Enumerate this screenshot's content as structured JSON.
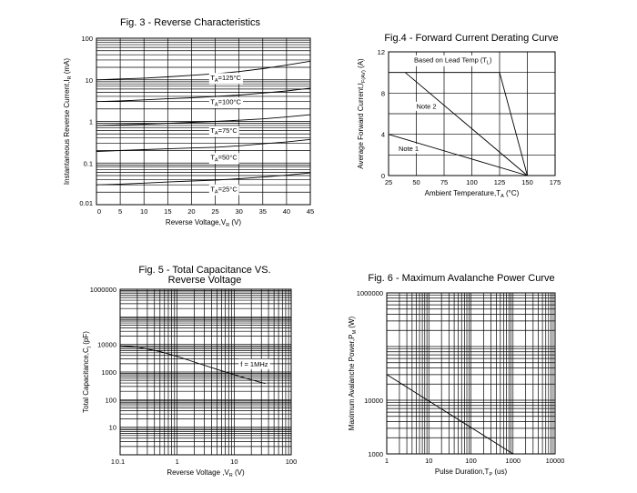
{
  "chart_data": [
    {
      "id": "fig3",
      "type": "line",
      "title": "Fig. 3 - Reverse Characteristics",
      "xlabel": "Reverse Voltage,V",
      "xlabel_sub": "R",
      "xlabel_unit": " (V)",
      "ylabel": "Instantaneous Reverse Current,I",
      "ylabel_sub": "R",
      "ylabel_unit": " (mA)",
      "xscale": "linear",
      "yscale": "log",
      "xlim": [
        0,
        45
      ],
      "ylim": [
        0.01,
        100
      ],
      "x_ticks": [
        "0",
        "5",
        "10",
        "15",
        "20",
        "25",
        "30",
        "35",
        "40",
        "45"
      ],
      "y_ticks": [
        "100",
        "10",
        "1",
        "0.1",
        "0.01"
      ],
      "grid": true,
      "series": [
        {
          "name": "T = 125°C",
          "label_main": "T",
          "label_sub": "A",
          "label_rest": "=125°C",
          "label_at": [
            24,
            10
          ],
          "x": [
            0,
            5,
            10,
            15,
            20,
            25,
            30,
            35,
            40,
            45
          ],
          "y": [
            10,
            10.5,
            11,
            11.8,
            12.8,
            14,
            15.8,
            18.5,
            22.5,
            28
          ]
        },
        {
          "name": "T = 100°C",
          "label_main": "T",
          "label_sub": "A",
          "label_rest": "=100°C",
          "label_at": [
            24,
            2.6
          ],
          "x": [
            0,
            5,
            10,
            15,
            20,
            25,
            30,
            35,
            40,
            45
          ],
          "y": [
            3.0,
            3.1,
            3.3,
            3.5,
            3.7,
            4.0,
            4.3,
            4.8,
            5.4,
            6.3
          ]
        },
        {
          "name": "T = 75°C",
          "label_main": "T",
          "label_sub": "A",
          "label_rest": "=75°C",
          "label_at": [
            24,
            0.53
          ],
          "x": [
            0,
            5,
            10,
            15,
            20,
            25,
            30,
            35,
            40,
            45
          ],
          "y": [
            0.8,
            0.83,
            0.86,
            0.9,
            0.95,
            1.0,
            1.07,
            1.15,
            1.28,
            1.45
          ]
        },
        {
          "name": "T = 50°C",
          "label_main": "T",
          "label_sub": "A",
          "label_rest": "=50°C",
          "label_at": [
            24,
            0.12
          ],
          "x": [
            0,
            5,
            10,
            15,
            20,
            25,
            30,
            35,
            40,
            45
          ],
          "y": [
            0.19,
            0.2,
            0.21,
            0.22,
            0.23,
            0.24,
            0.26,
            0.29,
            0.32,
            0.37
          ]
        },
        {
          "name": "T = 25°C",
          "label_main": "T",
          "label_sub": "A",
          "label_rest": "=25°C",
          "label_at": [
            24,
            0.021
          ],
          "x": [
            0,
            5,
            10,
            15,
            20,
            25,
            30,
            35,
            40,
            45
          ],
          "y": [
            0.03,
            0.031,
            0.033,
            0.035,
            0.037,
            0.039,
            0.042,
            0.046,
            0.051,
            0.058
          ]
        }
      ]
    },
    {
      "id": "fig4",
      "type": "line",
      "title": "Fig.4 - Forward Current Derating Curve",
      "xlabel": "Ambient Temperature,T",
      "xlabel_sub": "A",
      "xlabel_unit": " (°C)",
      "ylabel": "Average Forward Current,I",
      "ylabel_sub": "F(AV)",
      "ylabel_unit": " (A)",
      "xscale": "linear",
      "yscale": "linear",
      "xlim": [
        25,
        175
      ],
      "ylim": [
        0,
        12
      ],
      "x_ticks": [
        "25",
        "50",
        "75",
        "100",
        "125",
        "150",
        "175"
      ],
      "y_ticks": [
        "0",
        "4",
        "8",
        "12"
      ],
      "grid": true,
      "series": [
        {
          "name": "Based on Lead Temp (TL)",
          "label_main": "Based on Lead Temp (T",
          "label_sub": "L",
          "label_rest": ")",
          "label_at": [
            48,
            11
          ],
          "x": [
            25,
            125,
            150
          ],
          "y": [
            10,
            10,
            0
          ]
        },
        {
          "name": "Note 2",
          "label_main": "Note 2",
          "label_at": [
            50,
            6.5
          ],
          "x": [
            40,
            150
          ],
          "y": [
            10,
            0
          ]
        },
        {
          "name": "Note 1",
          "label_main": "Note 1",
          "label_at": [
            34,
            2.4
          ],
          "x": [
            25,
            150
          ],
          "y": [
            4,
            0
          ]
        }
      ]
    },
    {
      "id": "fig5",
      "type": "line",
      "title": "Fig. 5 - Total Capacitance VS.",
      "title2": "Reverse Voltage",
      "xlabel": "Reverse Voltage ,V",
      "xlabel_sub": "R",
      "xlabel_unit": " (V)",
      "ylabel": "Total Capacitance,C",
      "ylabel_sub": "j",
      "ylabel_unit": " (pF)",
      "xscale": "log",
      "yscale": "log",
      "xlim": [
        0.1,
        100
      ],
      "ylim": [
        1,
        1000000
      ],
      "x_ticks": [
        "0.1",
        "1",
        "10",
        "100"
      ],
      "y_ticks": [
        "1000000",
        "10000",
        "1000",
        "100",
        "10",
        "1"
      ],
      "grid": true,
      "annotation": "f = 1MHz",
      "series": [
        {
          "name": "f = 1MHz",
          "x": [
            0.1,
            0.2,
            0.5,
            1,
            2,
            5,
            10,
            20,
            35
          ],
          "y": [
            9000,
            8000,
            5500,
            3700,
            2300,
            1250,
            800,
            520,
            380
          ]
        }
      ]
    },
    {
      "id": "fig6",
      "type": "line",
      "title": "Fig. 6 - Maximum Avalanche Power Curve",
      "xlabel": "Pulse Duration,T",
      "xlabel_sub": "P",
      "xlabel_unit": " (us)",
      "ylabel": "Maximum Avalanche Power,P",
      "ylabel_sub": "M",
      "ylabel_unit": " (W)",
      "xscale": "log",
      "yscale": "log",
      "xlim": [
        1,
        10000
      ],
      "ylim": [
        1000,
        1000000
      ],
      "x_ticks": [
        "1",
        "10",
        "100",
        "1000",
        "10000"
      ],
      "y_ticks": [
        "1000000",
        "10000",
        "1000"
      ],
      "grid": true,
      "series": [
        {
          "name": "Pulse power",
          "x": [
            1,
            1000
          ],
          "y": [
            30000,
            1000
          ]
        }
      ]
    }
  ]
}
